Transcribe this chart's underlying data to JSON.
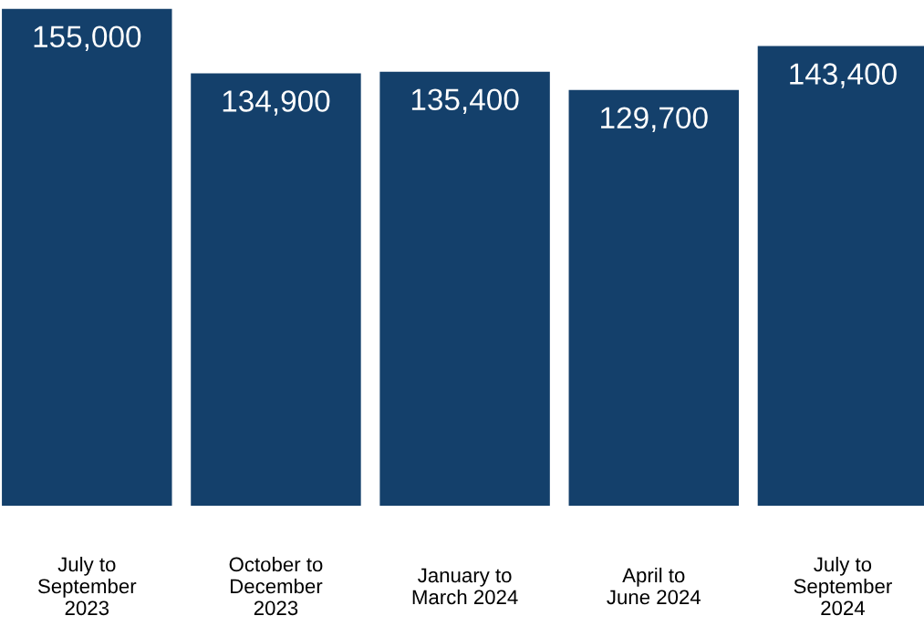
{
  "chart_data": {
    "type": "bar",
    "categories": [
      "July to\nSeptember\n2023",
      "October to\nDecember\n2023",
      "January to\nMarch 2024",
      "April to\nJune 2024",
      "July to\nSeptember\n2024"
    ],
    "values": [
      155000,
      134900,
      135400,
      129700,
      143400
    ],
    "color": "#14406b",
    "value_labels": [
      "155,000",
      "134,900",
      "135,400",
      "129,700",
      "143,400"
    ],
    "grid": false,
    "legend": false
  }
}
